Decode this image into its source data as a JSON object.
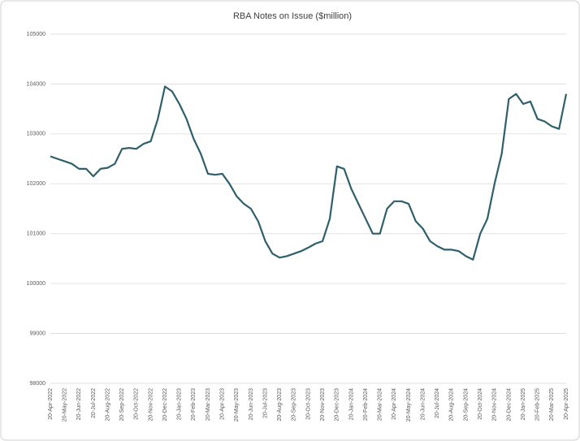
{
  "chart_data": {
    "type": "line",
    "title": "RBA Notes on Issue ($million)",
    "categories": [
      "20-Apr-2022",
      null,
      "20-May-2022",
      null,
      "20-Jun-2022",
      null,
      "20-Jul-2022",
      null,
      "20-Aug-2022",
      null,
      "20-Sep-2022",
      null,
      "20-Oct-2022",
      null,
      "20-Nov-2022",
      null,
      "20-Dec-2022",
      null,
      "20-Jan-2023",
      null,
      "20-Feb-2023",
      null,
      "20-Mar-2023",
      null,
      "20-Apr-2023",
      null,
      "20-May-2023",
      null,
      "20-Jun-2023",
      null,
      "20-Jul-2023",
      null,
      "20-Aug-2023",
      null,
      "20-Sep-2023",
      null,
      "20-Oct-2023",
      null,
      "20-Nov-2023",
      null,
      "20-Dec-2023",
      null,
      "20-Jan-2024",
      null,
      "20-Feb-2024",
      null,
      "20-Mar-2024",
      null,
      "20-Apr-2024",
      null,
      "20-May-2024",
      null,
      "20-Jun-2024",
      null,
      "20-Jul-2024",
      null,
      "20-Aug-2024",
      null,
      "20-Sep-2024",
      null,
      "20-Oct-2024",
      null,
      "20-Nov-2024",
      null,
      "20-Dec-2024",
      null,
      "20-Jan-2025",
      null,
      "20-Feb-2025",
      null,
      "20-Mar-2025",
      null,
      "20-Apr-2025"
    ],
    "series": [
      {
        "name": "Notes on Issue",
        "color": "#2e5f6b",
        "values": [
          102550,
          102500,
          102450,
          102400,
          102300,
          102300,
          102150,
          102300,
          102320,
          102400,
          102700,
          102720,
          102700,
          102800,
          102850,
          103300,
          103950,
          103850,
          103600,
          103300,
          102900,
          102600,
          102200,
          102180,
          102200,
          102000,
          101750,
          101600,
          101500,
          101250,
          100850,
          100600,
          100520,
          100550,
          100600,
          100650,
          100720,
          100800,
          100850,
          101300,
          102350,
          102300,
          101900,
          101600,
          101300,
          101000,
          101000,
          101500,
          101650,
          101650,
          101600,
          101250,
          101100,
          100850,
          100750,
          100680,
          100680,
          100650,
          100550,
          100480,
          101000,
          101300,
          102000,
          102600,
          103700,
          103800,
          103600,
          103650,
          103300,
          103250,
          103150,
          103100,
          103800
        ]
      }
    ],
    "ylim": [
      98000,
      105000
    ],
    "yticks": [
      98000,
      99000,
      100000,
      101000,
      102000,
      103000,
      104000,
      105000
    ],
    "grid": true
  }
}
